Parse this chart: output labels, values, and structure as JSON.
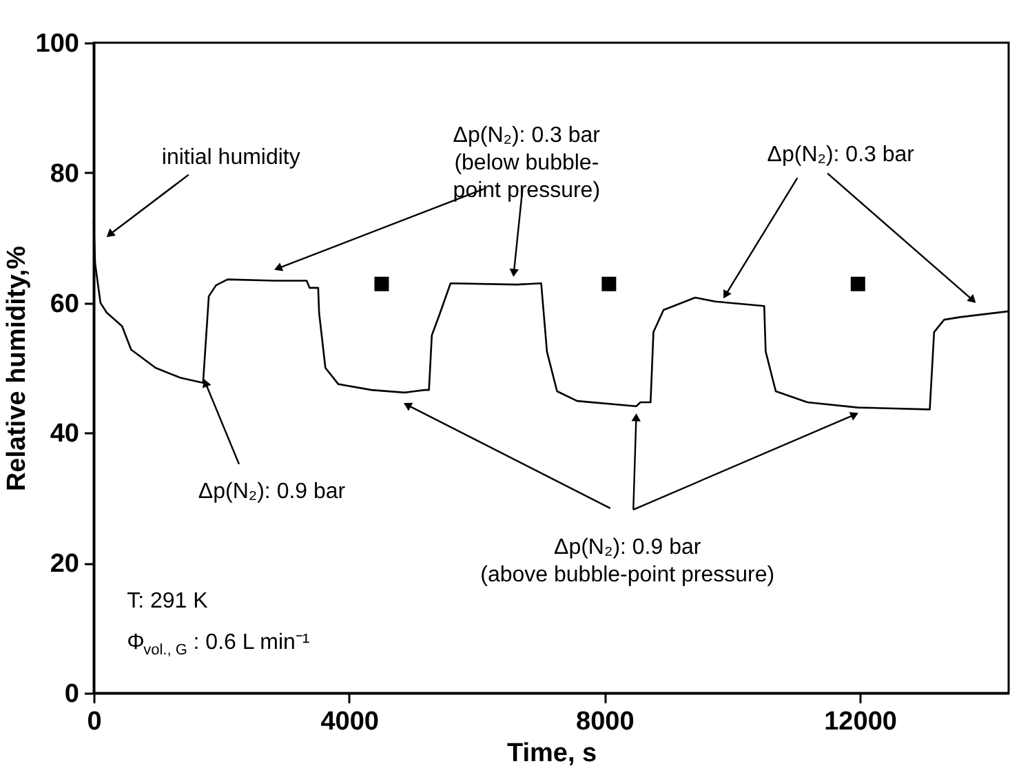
{
  "chart_data": {
    "type": "line",
    "xlabel": "Time, s",
    "ylabel": "Relative humidity,%",
    "xlim": [
      0,
      14330
    ],
    "ylim": [
      0,
      100
    ],
    "xticks": [
      0,
      4000,
      8000,
      12000
    ],
    "yticks": [
      0,
      20,
      40,
      60,
      80,
      100
    ],
    "grid": false,
    "series": [
      {
        "color": "#000000",
        "marker": "none",
        "x": [
          0,
          23,
          106,
          203,
          444,
          586,
          969,
          1352,
          1713,
          1803,
          1916,
          2096,
          2840,
          3336,
          3381,
          3516,
          3530,
          3629,
          3831,
          4350,
          4868,
          5026,
          5184,
          5251,
          5296,
          5409,
          5589,
          6626,
          7009,
          7099,
          7257,
          7573,
          8497,
          8564,
          8722,
          8767,
          8925,
          9421,
          9736,
          10502,
          10525,
          10683,
          11179,
          11968,
          13095,
          13163,
          13320,
          13568,
          14330
        ],
        "values": [
          72.5,
          66,
          60,
          58.5,
          56.4,
          52.8,
          50,
          48.5,
          47.7,
          61,
          62.7,
          63.6,
          63.4,
          63.4,
          62.3,
          62.3,
          58.5,
          50,
          47.5,
          46.6,
          46.2,
          46.4,
          46.6,
          46.6,
          55,
          58,
          63,
          62.8,
          63,
          52.5,
          46.4,
          44.9,
          44.1,
          44.7,
          44.7,
          55.5,
          58.9,
          60.8,
          60.2,
          59.5,
          52.5,
          46.4,
          44.7,
          43.9,
          43.6,
          55.5,
          57.4,
          57.8,
          58.7
        ]
      },
      {
        "type": "scatter",
        "color": "#000000",
        "marker": "square",
        "x": [
          4510,
          8070,
          11970
        ],
        "values": [
          62.9,
          62.9,
          62.9
        ]
      }
    ],
    "annotations": [
      {
        "text": "initial humidity",
        "x": 250,
        "y": 70.5
      },
      {
        "text": "Δp(N₂): 0.9 bar",
        "x": 1750,
        "y": 47.7
      },
      {
        "text": "Δp(N₂): 0.3 bar\n(below bubble-\npoint pressure)",
        "x": 2885,
        "y": 65.3
      },
      {
        "text": "Δp(N₂): 0.3 bar",
        "x": 9895,
        "y": 61.2
      },
      {
        "text": "Δp(N₂): 0.9 bar\n(above bubble-point pressure)",
        "x": 4910,
        "y": 44.3
      },
      "T: 291 K",
      "Φ$_{vol., G}$: 0.6 L min⁻¹"
    ]
  }
}
